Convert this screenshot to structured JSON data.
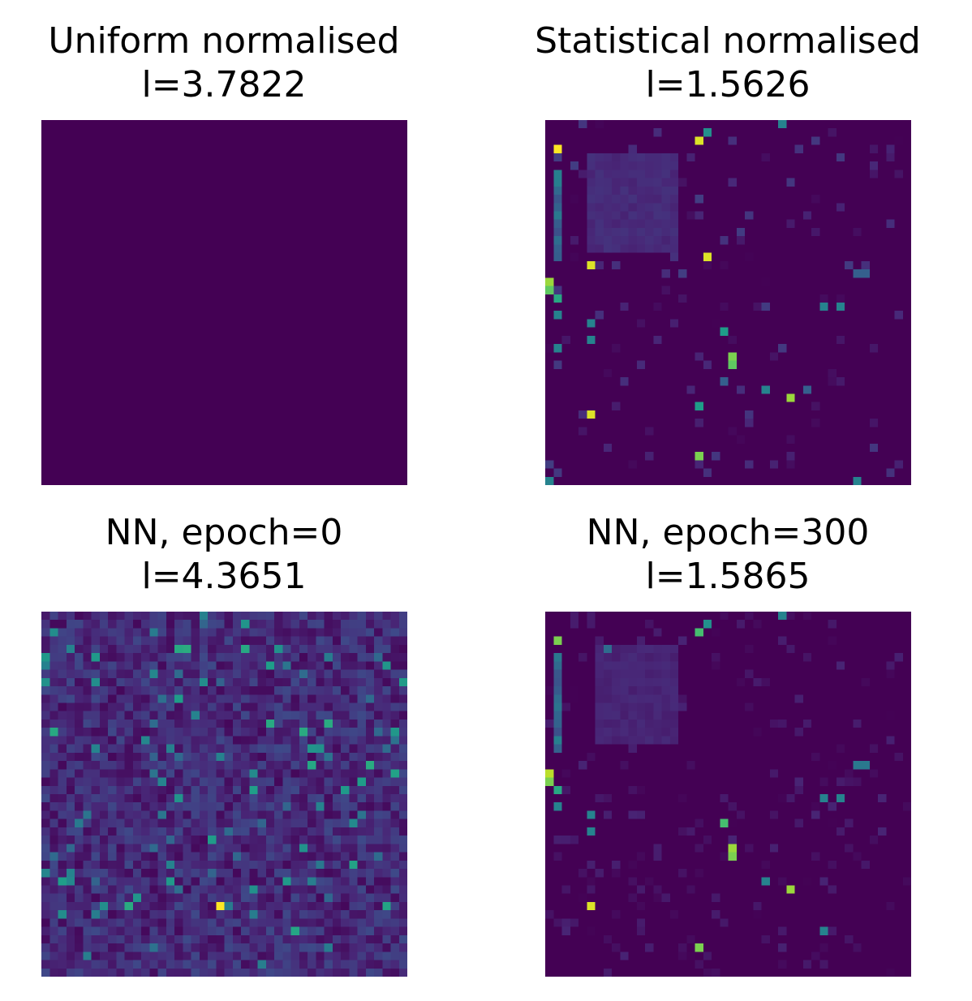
{
  "figure": {
    "colormap": "viridis",
    "colors": {
      "low": "#440154",
      "high": "#fde725"
    },
    "grid": false,
    "axes": "off"
  },
  "chart_data": [
    {
      "type": "heatmap",
      "title": "Uniform normalised",
      "subtitle": "l=3.7822",
      "grid_size": 44,
      "pattern": "uniform",
      "uniform_value": 0.0
    },
    {
      "type": "heatmap",
      "title": "Statistical normalised",
      "subtitle": "l=1.5626",
      "grid_size": 44,
      "pattern": "structured",
      "background": 0.0,
      "seed": 7,
      "noise_density": 0.06,
      "noise_amplitude": 0.18,
      "block": {
        "rows": [
          4,
          15
        ],
        "cols": [
          5,
          15
        ],
        "value": 0.12
      },
      "column_streaks": [
        {
          "col": 1,
          "rows": [
            6,
            16
          ],
          "value": 0.35
        }
      ],
      "hotspots": [
        {
          "r": 3,
          "c": 1,
          "v": 1.0
        },
        {
          "r": 2,
          "c": 18,
          "v": 0.95
        },
        {
          "r": 1,
          "c": 19,
          "v": 0.5
        },
        {
          "r": 0,
          "c": 28,
          "v": 0.45
        },
        {
          "r": 17,
          "c": 5,
          "v": 0.95
        },
        {
          "r": 16,
          "c": 19,
          "v": 0.95
        },
        {
          "r": 19,
          "c": 0,
          "v": 0.85
        },
        {
          "r": 20,
          "c": 0,
          "v": 0.75
        },
        {
          "r": 21,
          "c": 1,
          "v": 0.6
        },
        {
          "r": 23,
          "c": 1,
          "v": 0.45
        },
        {
          "r": 22,
          "c": 33,
          "v": 0.45
        },
        {
          "r": 22,
          "c": 35,
          "v": 0.45
        },
        {
          "r": 24,
          "c": 5,
          "v": 0.45
        },
        {
          "r": 26,
          "c": 5,
          "v": 0.45
        },
        {
          "r": 25,
          "c": 21,
          "v": 0.55
        },
        {
          "r": 28,
          "c": 22,
          "v": 0.8
        },
        {
          "r": 29,
          "c": 22,
          "v": 0.75
        },
        {
          "r": 27,
          "c": 1,
          "v": 0.45
        },
        {
          "r": 32,
          "c": 26,
          "v": 0.45
        },
        {
          "r": 33,
          "c": 29,
          "v": 0.85
        },
        {
          "r": 34,
          "c": 18,
          "v": 0.55
        },
        {
          "r": 35,
          "c": 5,
          "v": 0.95
        },
        {
          "r": 40,
          "c": 18,
          "v": 0.8
        },
        {
          "r": 43,
          "c": 0,
          "v": 0.45
        },
        {
          "r": 43,
          "c": 37,
          "v": 0.45
        },
        {
          "r": 18,
          "c": 37,
          "v": 0.3
        },
        {
          "r": 18,
          "c": 38,
          "v": 0.3
        },
        {
          "r": 31,
          "c": 21,
          "v": 0.3
        },
        {
          "r": 32,
          "c": 31,
          "v": 0.3
        }
      ]
    },
    {
      "type": "heatmap",
      "title": "NN, epoch=0",
      "subtitle": "l=4.3651",
      "grid_size": 44,
      "pattern": "random",
      "seed": 3,
      "base_range": [
        0.02,
        0.22
      ],
      "spike_probability": 0.045,
      "spike_range": [
        0.3,
        0.62
      ],
      "hotspots": [
        {
          "r": 35,
          "c": 21,
          "v": 1.0
        }
      ]
    },
    {
      "type": "heatmap",
      "title": "NN, epoch=300",
      "subtitle": "l=1.5865",
      "grid_size": 44,
      "pattern": "structured",
      "background": 0.0,
      "seed": 11,
      "noise_density": 0.1,
      "noise_amplitude": 0.1,
      "block": {
        "rows": [
          4,
          15
        ],
        "cols": [
          6,
          15
        ],
        "value": 0.1
      },
      "column_streaks": [
        {
          "col": 1,
          "rows": [
            5,
            16
          ],
          "value": 0.35
        }
      ],
      "hotspots": [
        {
          "r": 3,
          "c": 1,
          "v": 0.8
        },
        {
          "r": 2,
          "c": 18,
          "v": 0.7
        },
        {
          "r": 1,
          "c": 19,
          "v": 0.5
        },
        {
          "r": 0,
          "c": 28,
          "v": 0.45
        },
        {
          "r": 4,
          "c": 7,
          "v": 0.35
        },
        {
          "r": 19,
          "c": 0,
          "v": 0.9
        },
        {
          "r": 20,
          "c": 0,
          "v": 0.8
        },
        {
          "r": 21,
          "c": 1,
          "v": 0.6
        },
        {
          "r": 23,
          "c": 1,
          "v": 0.45
        },
        {
          "r": 18,
          "c": 37,
          "v": 0.4
        },
        {
          "r": 18,
          "c": 38,
          "v": 0.4
        },
        {
          "r": 22,
          "c": 33,
          "v": 0.45
        },
        {
          "r": 22,
          "c": 35,
          "v": 0.45
        },
        {
          "r": 24,
          "c": 5,
          "v": 0.45
        },
        {
          "r": 26,
          "c": 5,
          "v": 0.45
        },
        {
          "r": 25,
          "c": 21,
          "v": 0.7
        },
        {
          "r": 28,
          "c": 22,
          "v": 0.85
        },
        {
          "r": 29,
          "c": 22,
          "v": 0.8
        },
        {
          "r": 32,
          "c": 26,
          "v": 0.45
        },
        {
          "r": 33,
          "c": 29,
          "v": 0.85
        },
        {
          "r": 35,
          "c": 5,
          "v": 0.95
        },
        {
          "r": 40,
          "c": 18,
          "v": 0.8
        },
        {
          "r": 38,
          "c": 33,
          "v": 0.45
        }
      ]
    }
  ]
}
